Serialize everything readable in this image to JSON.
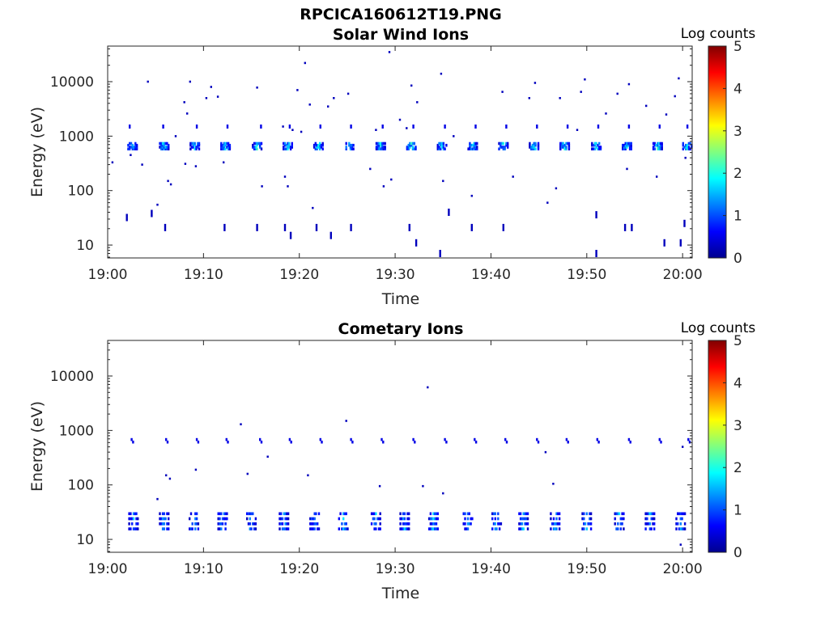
{
  "figure_title": "RPCICA160612T19.PNG",
  "chart_data": [
    {
      "type": "heatmap",
      "title": "Solar Wind Ions",
      "xlabel": "Time",
      "ylabel": "Energy (eV)",
      "x_range": [
        "19:00",
        "20:01"
      ],
      "x_ticks": [
        "19:00",
        "19:10",
        "19:20",
        "19:30",
        "19:40",
        "19:50",
        "20:00"
      ],
      "y_scale": "log",
      "y_range": [
        5.8,
        45000
      ],
      "y_ticks": [
        "10",
        "100",
        "1000",
        "10000"
      ],
      "colorbar": {
        "label": "Log counts",
        "range": [
          0,
          5
        ],
        "ticks": [
          "0",
          "1",
          "2",
          "3",
          "4",
          "5"
        ]
      },
      "main_band": {
        "energy_eV": 650,
        "bursts_time": [
          "19:02.6",
          "19:05.9",
          "19:09.1",
          "19:12.3",
          "19:15.6",
          "19:18.8",
          "19:22.0",
          "19:25.2",
          "19:28.5",
          "19:31.7",
          "19:34.9",
          "19:38.1",
          "19:41.3",
          "19:44.5",
          "19:47.7",
          "19:51.0",
          "19:54.2",
          "19:57.4",
          "20:00.5"
        ],
        "peak_log_counts": 2.2
      },
      "secondary_band": {
        "energy_eV": 1500,
        "times": [
          "19:02.3",
          "19:05.8",
          "19:09.3",
          "19:12.5",
          "19:16.0",
          "19:19.0",
          "19:22.2",
          "19:25.4",
          "19:28.7",
          "19:31.9",
          "19:35.2",
          "19:38.4",
          "19:41.6",
          "19:44.8",
          "19:48.0",
          "19:51.2",
          "19:54.4",
          "19:57.6",
          "20:00.5"
        ],
        "log_counts": 0.5
      },
      "low_energy_counts": [
        {
          "t": "19:02.0",
          "e": 32
        },
        {
          "t": "19:04.6",
          "e": 38
        },
        {
          "t": "19:06.0",
          "e": 21
        },
        {
          "t": "19:12.2",
          "e": 21
        },
        {
          "t": "19:15.6",
          "e": 21
        },
        {
          "t": "19:18.5",
          "e": 21
        },
        {
          "t": "19:19.1",
          "e": 15
        },
        {
          "t": "19:21.8",
          "e": 21
        },
        {
          "t": "19:23.3",
          "e": 15
        },
        {
          "t": "19:25.4",
          "e": 21
        },
        {
          "t": "19:31.5",
          "e": 21
        },
        {
          "t": "19:32.2",
          "e": 11
        },
        {
          "t": "19:34.7",
          "e": 7
        },
        {
          "t": "19:35.6",
          "e": 40
        },
        {
          "t": "19:38.0",
          "e": 21
        },
        {
          "t": "19:41.3",
          "e": 21
        },
        {
          "t": "19:51.0",
          "e": 36
        },
        {
          "t": "19:51.0",
          "e": 7
        },
        {
          "t": "19:54.0",
          "e": 21
        },
        {
          "t": "19:54.7",
          "e": 21
        },
        {
          "t": "19:58.1",
          "e": 11
        },
        {
          "t": "19:59.8",
          "e": 11
        },
        {
          "t": "20:00.2",
          "e": 25
        }
      ],
      "scattered_counts": [
        {
          "t": "19:00.5",
          "e": 330
        },
        {
          "t": "19:02.4",
          "e": 450
        },
        {
          "t": "19:03.6",
          "e": 300
        },
        {
          "t": "19:04.2",
          "e": 10000
        },
        {
          "t": "19:05.2",
          "e": 55
        },
        {
          "t": "19:06.3",
          "e": 150
        },
        {
          "t": "19:06.6",
          "e": 130
        },
        {
          "t": "19:07.1",
          "e": 1000
        },
        {
          "t": "19:08.0",
          "e": 4200
        },
        {
          "t": "19:08.1",
          "e": 310
        },
        {
          "t": "19:08.3",
          "e": 2600
        },
        {
          "t": "19:08.6",
          "e": 10000
        },
        {
          "t": "19:09.2",
          "e": 280
        },
        {
          "t": "19:10.3",
          "e": 5000
        },
        {
          "t": "19:10.8",
          "e": 8000
        },
        {
          "t": "19:11.5",
          "e": 5300
        },
        {
          "t": "19:12.1",
          "e": 330
        },
        {
          "t": "19:15.6",
          "e": 7800
        },
        {
          "t": "19:16.1",
          "e": 120
        },
        {
          "t": "19:18.3",
          "e": 1500
        },
        {
          "t": "19:18.5",
          "e": 180
        },
        {
          "t": "19:18.8",
          "e": 120
        },
        {
          "t": "19:19.3",
          "e": 1300
        },
        {
          "t": "19:19.8",
          "e": 7000
        },
        {
          "t": "19:20.2",
          "e": 1200
        },
        {
          "t": "19:20.6",
          "e": 22000
        },
        {
          "t": "19:21.1",
          "e": 3800
        },
        {
          "t": "19:21.4",
          "e": 48
        },
        {
          "t": "19:23.0",
          "e": 3500
        },
        {
          "t": "19:23.6",
          "e": 5000
        },
        {
          "t": "19:25.1",
          "e": 6000
        },
        {
          "t": "19:27.4",
          "e": 250
        },
        {
          "t": "19:28.0",
          "e": 1300
        },
        {
          "t": "19:28.8",
          "e": 120
        },
        {
          "t": "19:29.6",
          "e": 160
        },
        {
          "t": "19:29.4",
          "e": 35000
        },
        {
          "t": "19:30.5",
          "e": 2000
        },
        {
          "t": "19:31.2",
          "e": 1400
        },
        {
          "t": "19:31.7",
          "e": 8500
        },
        {
          "t": "19:32.3",
          "e": 4200
        },
        {
          "t": "19:34.8",
          "e": 14000
        },
        {
          "t": "19:35.0",
          "e": 150
        },
        {
          "t": "19:36.1",
          "e": 1000
        },
        {
          "t": "19:38.0",
          "e": 80
        },
        {
          "t": "19:41.2",
          "e": 6500
        },
        {
          "t": "19:42.3",
          "e": 180
        },
        {
          "t": "19:44.0",
          "e": 5000
        },
        {
          "t": "19:44.6",
          "e": 9500
        },
        {
          "t": "19:45.9",
          "e": 60
        },
        {
          "t": "19:46.8",
          "e": 110
        },
        {
          "t": "19:47.2",
          "e": 5000
        },
        {
          "t": "19:49.0",
          "e": 1300
        },
        {
          "t": "19:49.4",
          "e": 6500
        },
        {
          "t": "19:49.8",
          "e": 11000
        },
        {
          "t": "19:52.0",
          "e": 2600
        },
        {
          "t": "19:53.2",
          "e": 6000
        },
        {
          "t": "19:54.2",
          "e": 250
        },
        {
          "t": "19:54.4",
          "e": 9000
        },
        {
          "t": "19:56.2",
          "e": 3600
        },
        {
          "t": "19:57.3",
          "e": 180
        },
        {
          "t": "19:58.3",
          "e": 2500
        },
        {
          "t": "19:59.2",
          "e": 5400
        },
        {
          "t": "19:59.6",
          "e": 11500
        },
        {
          "t": "20:00.3",
          "e": 400
        }
      ]
    },
    {
      "type": "heatmap",
      "title": "Cometary Ions",
      "xlabel": "Time",
      "ylabel": "Energy (eV)",
      "x_range": [
        "19:00",
        "20:01"
      ],
      "x_ticks": [
        "19:00",
        "19:10",
        "19:20",
        "19:30",
        "19:40",
        "19:50",
        "20:00"
      ],
      "y_scale": "log",
      "y_range": [
        5.8,
        45000
      ],
      "y_ticks": [
        "10",
        "100",
        "1000",
        "10000"
      ],
      "colorbar": {
        "label": "Log counts",
        "range": [
          0,
          5
        ],
        "ticks": [
          "0",
          "1",
          "2",
          "3",
          "4",
          "5"
        ]
      },
      "low_band": {
        "energy_range_eV": [
          14,
          33
        ],
        "bursts_time": [
          "19:02.7",
          "19:05.9",
          "19:09.0",
          "19:12.0",
          "19:15.0",
          "19:18.4",
          "19:21.6",
          "19:24.6",
          "19:28.0",
          "19:31.0",
          "19:34.0",
          "19:37.6",
          "19:40.6",
          "19:43.4",
          "19:46.7",
          "19:50.0",
          "19:53.4",
          "19:56.6",
          "19:59.8"
        ],
        "peak_log_counts": 1.8
      },
      "band_700": {
        "energy_eV": 680,
        "times": [
          "19:02.5",
          "19:06.1",
          "19:09.3",
          "19:12.4",
          "19:15.9",
          "19:19.0",
          "19:22.2",
          "19:25.4",
          "19:28.6",
          "19:31.9",
          "19:35.2",
          "19:38.3",
          "19:41.5",
          "19:44.8",
          "19:47.9",
          "19:51.1",
          "19:54.4",
          "19:57.6",
          "20:00.6"
        ],
        "log_counts": 0.5
      },
      "scattered_counts": [
        {
          "t": "19:05.2",
          "e": 55
        },
        {
          "t": "19:06.1",
          "e": 150
        },
        {
          "t": "19:06.5",
          "e": 130
        },
        {
          "t": "19:09.2",
          "e": 190
        },
        {
          "t": "19:13.9",
          "e": 1300
        },
        {
          "t": "19:14.6",
          "e": 160
        },
        {
          "t": "19:16.7",
          "e": 330
        },
        {
          "t": "19:20.9",
          "e": 150
        },
        {
          "t": "19:24.9",
          "e": 1500
        },
        {
          "t": "19:28.4",
          "e": 95
        },
        {
          "t": "19:32.9",
          "e": 95
        },
        {
          "t": "19:33.4",
          "e": 6200
        },
        {
          "t": "19:35.0",
          "e": 70
        },
        {
          "t": "19:45.7",
          "e": 400
        },
        {
          "t": "19:46.5",
          "e": 105
        },
        {
          "t": "20:00.0",
          "e": 500
        },
        {
          "t": "19:59.8",
          "e": 8
        }
      ]
    }
  ]
}
